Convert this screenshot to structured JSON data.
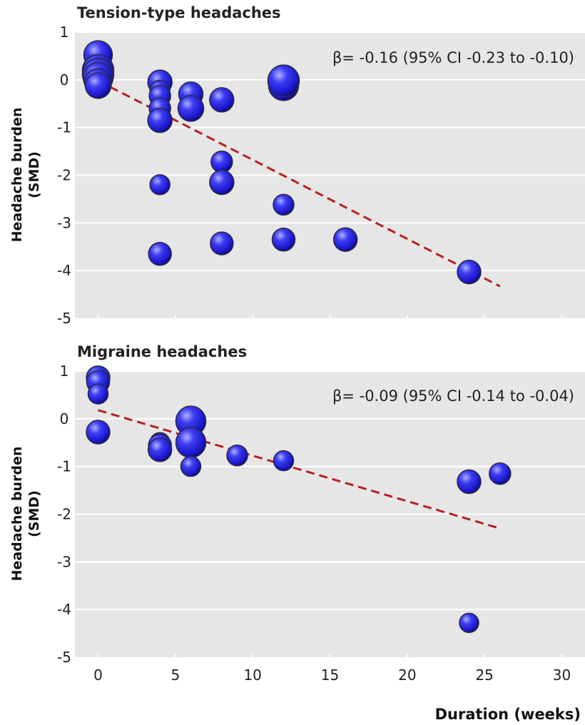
{
  "chart_data": [
    {
      "type": "scatter",
      "title": "Tension-type headaches",
      "ylabel": "Headache burden (SMD)",
      "ylabel_lines": [
        "Headache burden",
        "(SMD)"
      ],
      "xlabel": "",
      "xlim": [
        -1.5,
        31.5
      ],
      "ylim": [
        -5,
        1
      ],
      "yticks": [
        1,
        0,
        -1,
        -2,
        -3,
        -4,
        -5
      ],
      "ytick_labels": [
        "1",
        "0",
        "-1",
        "-2",
        "-3",
        "-4",
        "-5"
      ],
      "xticks": [
        0,
        5,
        10,
        15,
        20,
        25,
        30
      ],
      "xtick_labels": [],
      "grid": true,
      "annotation": "β= -0.16 (95% CI -0.23 to -0.10)",
      "trend": {
        "x": [
          0,
          26
        ],
        "y": [
          -0.02,
          -4.33
        ],
        "color": "#b52222",
        "style": "dashed"
      },
      "point_color": "#1d1ae6",
      "series": [
        {
          "name": "studies",
          "points": [
            {
              "x": 0,
              "y": 0.52,
              "w": 1.1
            },
            {
              "x": 0,
              "y": 0.2,
              "w": 1.3
            },
            {
              "x": 0,
              "y": 0.12,
              "w": 1.3
            },
            {
              "x": 0,
              "y": 0.05,
              "w": 1.2
            },
            {
              "x": 0,
              "y": -0.05,
              "w": 1.0
            },
            {
              "x": 0,
              "y": -0.12,
              "w": 0.9
            },
            {
              "x": 4,
              "y": -0.05,
              "w": 0.8
            },
            {
              "x": 4,
              "y": -0.22,
              "w": 0.5
            },
            {
              "x": 4,
              "y": -0.34,
              "w": 0.6
            },
            {
              "x": 4,
              "y": -0.6,
              "w": 0.6
            },
            {
              "x": 4,
              "y": -0.85,
              "w": 0.8
            },
            {
              "x": 4,
              "y": -2.2,
              "w": 0.5
            },
            {
              "x": 4,
              "y": -3.65,
              "w": 0.7
            },
            {
              "x": 6,
              "y": -0.3,
              "w": 0.8
            },
            {
              "x": 6,
              "y": -0.6,
              "w": 0.9
            },
            {
              "x": 8,
              "y": -0.42,
              "w": 0.8
            },
            {
              "x": 8,
              "y": -1.72,
              "w": 0.6
            },
            {
              "x": 8,
              "y": -2.15,
              "w": 0.8
            },
            {
              "x": 8,
              "y": -3.43,
              "w": 0.7
            },
            {
              "x": 12,
              "y": -0.12,
              "w": 1.2
            },
            {
              "x": 12,
              "y": -0.02,
              "w": 1.3
            },
            {
              "x": 12,
              "y": -2.62,
              "w": 0.55
            },
            {
              "x": 12,
              "y": -3.35,
              "w": 0.7
            },
            {
              "x": 16,
              "y": -3.35,
              "w": 0.75
            },
            {
              "x": 24,
              "y": -4.03,
              "w": 0.75
            }
          ]
        }
      ]
    },
    {
      "type": "scatter",
      "title": "Migraine headaches",
      "ylabel": "Headache burden (SMD)",
      "ylabel_lines": [
        "Headache burden",
        "(SMD)"
      ],
      "xlabel": "Duration (weeks)",
      "xlim": [
        -1.5,
        31.5
      ],
      "ylim": [
        -5,
        1
      ],
      "yticks": [
        1,
        0,
        -1,
        -2,
        -3,
        -4,
        -5
      ],
      "ytick_labels": [
        "1",
        "0",
        "-1",
        "-2",
        "-3",
        "-4",
        "-5"
      ],
      "xticks": [
        0,
        5,
        10,
        15,
        20,
        25,
        30
      ],
      "xtick_labels": [
        "0",
        "5",
        "10",
        "15",
        "20",
        "25",
        "30"
      ],
      "grid": true,
      "annotation": "β= -0.09 (95% CI -0.14 to -0.04)",
      "trend": {
        "x": [
          0,
          26
        ],
        "y": [
          0.18,
          -2.3
        ],
        "color": "#b52222",
        "style": "dashed"
      },
      "point_color": "#1d1ae6",
      "series": [
        {
          "name": "studies",
          "points": [
            {
              "x": 0,
              "y": 0.86,
              "w": 0.75
            },
            {
              "x": 0,
              "y": 0.77,
              "w": 0.7
            },
            {
              "x": 0,
              "y": 0.52,
              "w": 0.5
            },
            {
              "x": 0,
              "y": -0.28,
              "w": 0.75
            },
            {
              "x": 4,
              "y": -0.5,
              "w": 0.5
            },
            {
              "x": 4,
              "y": -0.56,
              "w": 0.7
            },
            {
              "x": 4,
              "y": -0.65,
              "w": 0.75
            },
            {
              "x": 6,
              "y": -0.05,
              "w": 1.2
            },
            {
              "x": 6,
              "y": -0.5,
              "w": 1.2
            },
            {
              "x": 6,
              "y": -1.0,
              "w": 0.5
            },
            {
              "x": 9,
              "y": -0.77,
              "w": 0.55
            },
            {
              "x": 12,
              "y": -0.88,
              "w": 0.5
            },
            {
              "x": 24,
              "y": -1.32,
              "w": 0.75
            },
            {
              "x": 24,
              "y": -4.28,
              "w": 0.45
            },
            {
              "x": 26,
              "y": -1.15,
              "w": 0.6
            }
          ]
        }
      ]
    }
  ]
}
